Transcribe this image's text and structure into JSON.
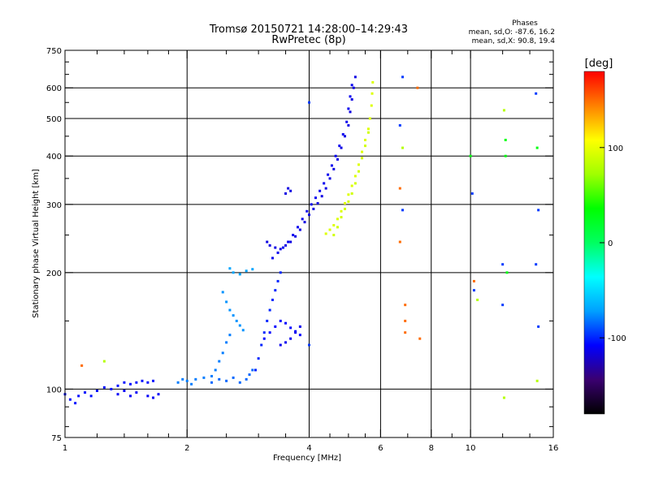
{
  "chart_data": {
    "type": "scatter",
    "title": "Tromsø 20150721 14:28:00–14:29:43",
    "subtitle": "RwPretec (8p)",
    "xlabel": "Frequency [MHz]",
    "ylabel": "Stationary phase Virtual Height [km]",
    "x_scale": "log",
    "y_scale": "log",
    "xlim": [
      1,
      16
    ],
    "ylim": [
      75,
      750
    ],
    "x_ticks": [
      1,
      2,
      4,
      6,
      8,
      10,
      16
    ],
    "x_tick_labels": [
      "1",
      "2",
      "4",
      "6",
      "8",
      "10",
      "16"
    ],
    "x_minor_ticks": [
      1.2,
      1.4,
      1.6,
      1.8,
      2.5,
      3,
      3.5,
      4.5,
      5,
      5.5,
      7,
      9,
      12,
      14
    ],
    "x_grid": [
      2,
      4,
      6,
      8,
      10
    ],
    "y_ticks": [
      75,
      100,
      200,
      300,
      400,
      500,
      600,
      750
    ],
    "y_tick_labels": [
      "75",
      "100",
      "200",
      "300",
      "400",
      "500",
      "600",
      "750"
    ],
    "y_grid": [
      100,
      200,
      300,
      400,
      500,
      600
    ],
    "grid": true,
    "legend": {
      "heading": "Phases",
      "lines": [
        "mean, sd,O:  -87.6, 16.2",
        "mean, sd,X:  90.8, 19.4"
      ],
      "placement": "top-right"
    },
    "colorbar": {
      "label": "[deg]",
      "range": [
        -180,
        180
      ],
      "ticks": [
        100,
        0,
        -100
      ],
      "tick_labels": [
        "100",
        "0",
        "-100"
      ]
    },
    "color_stops": [
      "#000000",
      "#3a0070",
      "#0000ff",
      "#00a0ff",
      "#00ffff",
      "#00ff60",
      "#00ff00",
      "#a0ff00",
      "#ffff00",
      "#ff8000",
      "#ff0000"
    ],
    "traces": [
      {
        "phase": -105,
        "points": [
          [
            1.0,
            97
          ],
          [
            1.03,
            94
          ],
          [
            1.06,
            92
          ],
          [
            1.08,
            96
          ],
          [
            1.12,
            98
          ],
          [
            1.16,
            96
          ],
          [
            1.2,
            99
          ],
          [
            1.25,
            101
          ],
          [
            1.3,
            100
          ],
          [
            1.35,
            102
          ],
          [
            1.4,
            104
          ],
          [
            1.45,
            103
          ],
          [
            1.5,
            104
          ],
          [
            1.55,
            105
          ],
          [
            1.6,
            104
          ],
          [
            1.65,
            105
          ]
        ]
      },
      {
        "phase": -110,
        "points": [
          [
            1.35,
            97
          ],
          [
            1.4,
            99
          ],
          [
            1.45,
            96
          ],
          [
            1.5,
            98
          ],
          [
            1.6,
            96
          ],
          [
            1.65,
            95
          ],
          [
            1.7,
            97
          ]
        ]
      },
      {
        "phase": -80,
        "points": [
          [
            1.9,
            104
          ],
          [
            1.95,
            106
          ],
          [
            2.0,
            105
          ],
          [
            2.05,
            103
          ],
          [
            2.1,
            106
          ],
          [
            2.2,
            107
          ],
          [
            2.3,
            108
          ],
          [
            2.35,
            112
          ],
          [
            2.4,
            118
          ],
          [
            2.45,
            124
          ],
          [
            2.5,
            132
          ],
          [
            2.55,
            138
          ]
        ]
      },
      {
        "phase": -85,
        "points": [
          [
            2.3,
            104
          ],
          [
            2.4,
            106
          ],
          [
            2.5,
            105
          ],
          [
            2.6,
            107
          ],
          [
            2.7,
            104
          ],
          [
            2.8,
            106
          ],
          [
            2.85,
            109
          ],
          [
            2.9,
            112
          ]
        ]
      },
      {
        "phase": -75,
        "points": [
          [
            2.45,
            178
          ],
          [
            2.5,
            168
          ],
          [
            2.55,
            160
          ],
          [
            2.6,
            155
          ],
          [
            2.65,
            150
          ],
          [
            2.7,
            146
          ],
          [
            2.75,
            142
          ]
        ]
      },
      {
        "phase": -70,
        "points": [
          [
            2.55,
            205
          ],
          [
            2.6,
            200
          ],
          [
            2.7,
            198
          ],
          [
            2.8,
            202
          ],
          [
            2.9,
            204
          ]
        ]
      },
      {
        "phase": -100,
        "points": [
          [
            2.95,
            112
          ],
          [
            3.0,
            120
          ],
          [
            3.05,
            130
          ],
          [
            3.1,
            140
          ],
          [
            3.15,
            150
          ],
          [
            3.2,
            160
          ],
          [
            3.25,
            170
          ],
          [
            3.3,
            180
          ],
          [
            3.35,
            190
          ],
          [
            3.4,
            200
          ]
        ]
      },
      {
        "phase": -108,
        "points": [
          [
            3.1,
            135
          ],
          [
            3.2,
            140
          ],
          [
            3.3,
            145
          ],
          [
            3.4,
            150
          ],
          [
            3.5,
            148
          ],
          [
            3.6,
            144
          ],
          [
            3.7,
            141
          ],
          [
            3.8,
            138
          ]
        ]
      },
      {
        "phase": -112,
        "points": [
          [
            3.4,
            130
          ],
          [
            3.5,
            132
          ],
          [
            3.6,
            135
          ],
          [
            3.7,
            140
          ],
          [
            3.8,
            145
          ]
        ]
      },
      {
        "phase": -115,
        "points": [
          [
            3.15,
            240
          ],
          [
            3.2,
            235
          ],
          [
            3.3,
            232
          ],
          [
            3.4,
            230
          ],
          [
            3.5,
            235
          ],
          [
            3.6,
            240
          ],
          [
            3.7,
            248
          ],
          [
            3.8,
            258
          ],
          [
            3.9,
            270
          ],
          [
            4.0,
            282
          ],
          [
            4.1,
            292
          ],
          [
            4.2,
            302
          ],
          [
            4.3,
            315
          ],
          [
            4.4,
            330
          ],
          [
            4.5,
            350
          ],
          [
            4.6,
            370
          ],
          [
            4.7,
            392
          ],
          [
            4.8,
            420
          ],
          [
            4.9,
            450
          ],
          [
            5.0,
            480
          ],
          [
            5.05,
            520
          ],
          [
            5.1,
            560
          ],
          [
            5.15,
            600
          ],
          [
            5.2,
            640
          ]
        ]
      },
      {
        "phase": -112,
        "points": [
          [
            3.25,
            218
          ],
          [
            3.35,
            225
          ],
          [
            3.45,
            232
          ],
          [
            3.55,
            240
          ],
          [
            3.65,
            250
          ],
          [
            3.75,
            262
          ],
          [
            3.85,
            275
          ],
          [
            3.95,
            288
          ],
          [
            4.05,
            300
          ],
          [
            4.15,
            312
          ],
          [
            4.25,
            325
          ],
          [
            4.35,
            340
          ],
          [
            4.45,
            358
          ],
          [
            4.55,
            378
          ],
          [
            4.65,
            400
          ],
          [
            4.75,
            425
          ],
          [
            4.85,
            455
          ],
          [
            4.95,
            490
          ],
          [
            5.0,
            530
          ],
          [
            5.05,
            570
          ],
          [
            5.1,
            610
          ]
        ]
      },
      {
        "phase": -115,
        "points": [
          [
            3.5,
            320
          ],
          [
            3.55,
            330
          ],
          [
            3.6,
            325
          ]
        ]
      },
      {
        "phase": 95,
        "points": [
          [
            4.4,
            252
          ],
          [
            4.5,
            258
          ],
          [
            4.6,
            265
          ],
          [
            4.7,
            275
          ],
          [
            4.8,
            288
          ],
          [
            4.9,
            302
          ],
          [
            5.0,
            318
          ],
          [
            5.1,
            335
          ],
          [
            5.2,
            355
          ],
          [
            5.3,
            380
          ],
          [
            5.4,
            410
          ],
          [
            5.5,
            440
          ],
          [
            5.6,
            470
          ],
          [
            5.65,
            500
          ],
          [
            5.7,
            540
          ],
          [
            5.72,
            580
          ],
          [
            5.74,
            620
          ]
        ]
      },
      {
        "phase": 90,
        "points": [
          [
            4.6,
            250
          ],
          [
            4.7,
            262
          ],
          [
            4.8,
            278
          ],
          [
            4.9,
            292
          ],
          [
            5.0,
            305
          ],
          [
            5.1,
            320
          ],
          [
            5.2,
            340
          ],
          [
            5.3,
            365
          ],
          [
            5.4,
            395
          ],
          [
            5.5,
            425
          ],
          [
            5.6,
            460
          ]
        ]
      },
      {
        "phase": 150,
        "points": [
          [
            1.1,
            115
          ],
          [
            6.7,
            330
          ],
          [
            6.7,
            240
          ],
          [
            6.9,
            165
          ],
          [
            6.9,
            150
          ],
          [
            6.9,
            140
          ],
          [
            7.5,
            135
          ],
          [
            7.4,
            600
          ],
          [
            10.2,
            190
          ]
        ]
      },
      {
        "phase": -95,
        "points": [
          [
            4.0,
            550
          ],
          [
            4.0,
            130
          ],
          [
            6.7,
            480
          ],
          [
            6.8,
            640
          ],
          [
            6.8,
            290
          ],
          [
            10.2,
            180
          ],
          [
            10.1,
            320
          ],
          [
            12.0,
            210
          ],
          [
            12.0,
            165
          ],
          [
            14.5,
            580
          ],
          [
            14.7,
            290
          ],
          [
            14.5,
            210
          ],
          [
            14.7,
            145
          ]
        ]
      },
      {
        "phase": 80,
        "points": [
          [
            1.25,
            118
          ],
          [
            6.8,
            420
          ],
          [
            10.4,
            170
          ],
          [
            12.1,
            95
          ],
          [
            12.1,
            525
          ],
          [
            14.6,
            105
          ]
        ]
      },
      {
        "phase": 30,
        "points": [
          [
            12.2,
            400
          ],
          [
            12.2,
            440
          ],
          [
            14.6,
            420
          ],
          [
            12.3,
            200
          ],
          [
            10.0,
            400
          ]
        ]
      }
    ]
  }
}
